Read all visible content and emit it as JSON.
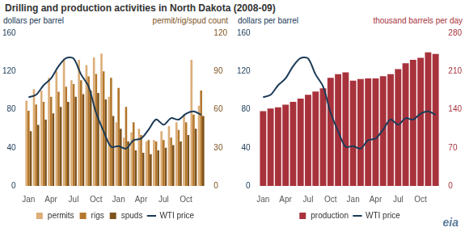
{
  "title": "Drilling and production activities in North Dakota (2008-09)",
  "logo": "eia",
  "chart_data": [
    {
      "type": "bar",
      "categories": [
        "Jan",
        null,
        null,
        "Apr",
        null,
        null,
        "Jul",
        null,
        null,
        "Oct",
        null,
        null,
        "Jan",
        null,
        null,
        "Apr",
        null,
        null,
        "Jul",
        null,
        null,
        "Oct",
        null,
        null
      ],
      "ylabel": "dollars per barrel",
      "y2label": "permit/rig/spud count",
      "ylim": [
        0,
        160
      ],
      "yticks": [
        0,
        40,
        80,
        120,
        160
      ],
      "y2lim": [
        0,
        120
      ],
      "y2ticks": [
        0,
        30,
        60,
        90,
        120
      ],
      "grid": false,
      "legend": "bottom",
      "series": [
        {
          "name": "permits",
          "color": "#dcae78",
          "axis": "y2",
          "values": [
            67,
            76,
            75,
            85,
            90,
            100,
            83,
            99,
            95,
            101,
            104,
            70,
            50,
            38,
            42,
            45,
            35,
            36,
            43,
            47,
            50,
            56,
            99,
            63
          ]
        },
        {
          "name": "rigs",
          "color": "#b3772d",
          "axis": "y2",
          "values": [
            59,
            64,
            66,
            70,
            74,
            78,
            80,
            83,
            86,
            88,
            90,
            85,
            77,
            62,
            50,
            40,
            36,
            35,
            36,
            38,
            44,
            50,
            56,
            75
          ]
        },
        {
          "name": "spuds",
          "color": "#7d531e",
          "axis": "y2",
          "values": [
            43,
            48,
            52,
            57,
            62,
            66,
            70,
            72,
            75,
            73,
            68,
            55,
            45,
            35,
            28,
            26,
            25,
            28,
            30,
            32,
            35,
            40,
            45,
            55
          ]
        },
        {
          "name": "WTI price",
          "type": "line",
          "color": "#1b3a57",
          "values": [
            92.9,
            95.4,
            105.4,
            112.6,
            125.4,
            133.9,
            133.4,
            116.7,
            104.1,
            76.6,
            57.3,
            41.1,
            41.7,
            39.1,
            47.9,
            49.6,
            59.0,
            69.6,
            64.1,
            71.0,
            69.4,
            75.7,
            78.0,
            74.5
          ]
        }
      ]
    },
    {
      "type": "bar",
      "categories": [
        "Jan",
        null,
        null,
        "Apr",
        null,
        null,
        "Jul",
        null,
        null,
        "Oct",
        null,
        null,
        "Jan",
        null,
        null,
        "Apr",
        null,
        null,
        "Jul",
        null,
        null,
        "Oct",
        null,
        null
      ],
      "ylabel": "dollars per barrel",
      "y2label": "thousand barrels per day",
      "ylim": [
        0,
        160
      ],
      "yticks": [
        0,
        40,
        80,
        120,
        160
      ],
      "y2lim": [
        0,
        280
      ],
      "y2ticks": [
        0,
        70,
        140,
        210,
        280
      ],
      "grid": false,
      "legend": "bottom",
      "series": [
        {
          "name": "production",
          "color": "#a8323c",
          "axis": "y2",
          "values": [
            137,
            142,
            144,
            149,
            154,
            160,
            167,
            173,
            179,
            198,
            205,
            208,
            193,
            196,
            197,
            197,
            201,
            205,
            214,
            225,
            231,
            235,
            245,
            242
          ]
        },
        {
          "name": "WTI price",
          "type": "line",
          "color": "#1b3a57",
          "values": [
            92.9,
            95.4,
            105.4,
            112.6,
            125.4,
            133.9,
            133.4,
            116.7,
            104.1,
            76.6,
            57.3,
            41.1,
            41.7,
            39.1,
            47.9,
            49.6,
            59.0,
            69.6,
            64.1,
            71.0,
            69.4,
            75.7,
            78.0,
            74.5
          ]
        }
      ]
    }
  ]
}
